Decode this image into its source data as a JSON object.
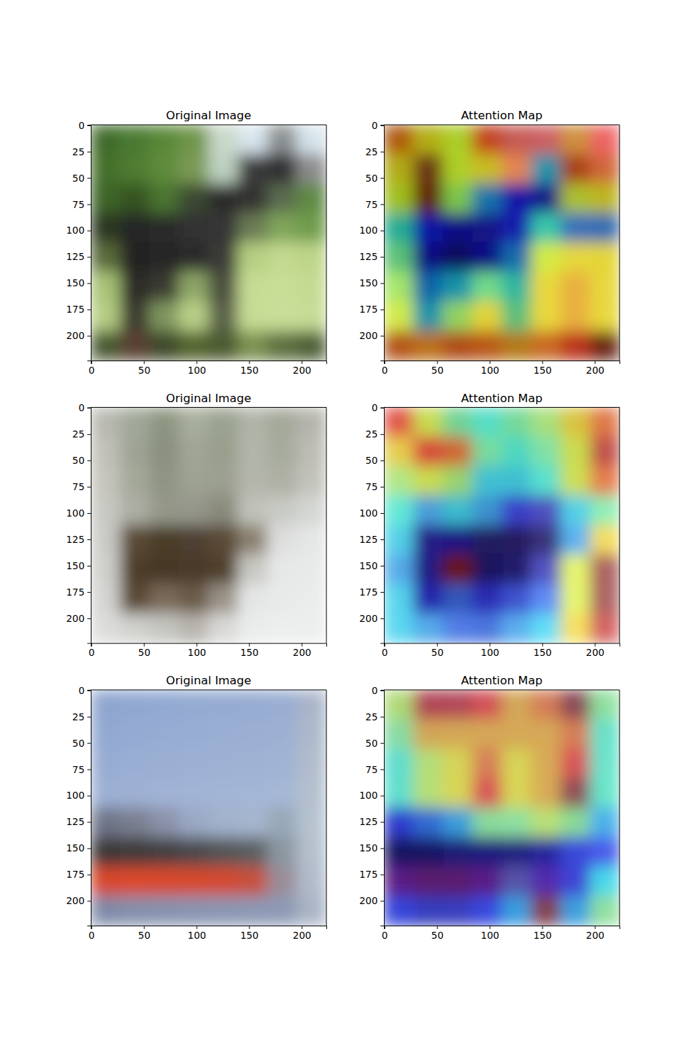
{
  "chart_data": [
    {
      "type": "image",
      "title": "Original Image",
      "xlim": [
        -0.5,
        223.5
      ],
      "ylim": [
        223.5,
        -0.5
      ],
      "xticks": [
        0,
        50,
        100,
        150,
        200
      ],
      "yticks": [
        0,
        25,
        50,
        75,
        100,
        125,
        150,
        175,
        200
      ],
      "cells": [
        [
          "#3f6a2a",
          "#4a7a30",
          "#5a8838",
          "#6f9548",
          "#c8d8c8",
          "#d8e6ee",
          "#8a8f90",
          "#d5e3ec"
        ],
        [
          "#456f2c",
          "#4f7c33",
          "#5f8b3b",
          "#7a9a55",
          "#bfd2c2",
          "#3a3a3a",
          "#2e2e30",
          "#8c8c8c"
        ],
        [
          "#3d6528",
          "#355224",
          "#4b7533",
          "#3a4a30",
          "#2c2c2c",
          "#303030",
          "#5a6a50",
          "#5f8a45"
        ],
        [
          "#2a3520",
          "#252525",
          "#2a2a2a",
          "#303030",
          "#353535",
          "#6a7a55",
          "#7fa55a",
          "#6f9c4c"
        ],
        [
          "#5a6a3a",
          "#222222",
          "#262626",
          "#2a2a2a",
          "#3a3a38",
          "#b5cf82",
          "#c2d98f",
          "#bdd588"
        ],
        [
          "#a8c277",
          "#2a2a28",
          "#3a3a30",
          "#8ea668",
          "#4a4f3e",
          "#c6dc94",
          "#c8dd96",
          "#c4da92"
        ],
        [
          "#b5cd84",
          "#3a3a2f",
          "#7f9660",
          "#b9d088",
          "#5a6248",
          "#c6dc94",
          "#c9de98",
          "#c6db95"
        ],
        [
          "#4a5a30",
          "#5a4030",
          "#3e4a2c",
          "#55652f",
          "#4b5a30",
          "#7d9150",
          "#5f7040",
          "#4e5e35"
        ]
      ]
    },
    {
      "type": "heatmap",
      "title": "Attention Map",
      "color": "jet",
      "xlim": [
        -0.5,
        223.5
      ],
      "ylim": [
        223.5,
        -0.5
      ],
      "xticks": [
        0,
        50,
        100,
        150,
        200
      ],
      "yticks": [
        0,
        25,
        50,
        75,
        100,
        125,
        150,
        175,
        200
      ],
      "cells": [
        [
          0.7,
          0.6,
          0.55,
          0.75,
          0.8,
          0.8,
          0.65,
          0.75
        ],
        [
          0.6,
          0.85,
          0.55,
          0.6,
          0.7,
          0.35,
          0.7,
          0.7
        ],
        [
          0.55,
          0.85,
          0.5,
          0.3,
          0.2,
          0.15,
          0.55,
          0.6
        ],
        [
          0.4,
          0.2,
          0.15,
          0.15,
          0.2,
          0.4,
          0.25,
          0.25
        ],
        [
          0.45,
          0.15,
          0.1,
          0.15,
          0.3,
          0.55,
          0.6,
          0.6
        ],
        [
          0.5,
          0.3,
          0.35,
          0.45,
          0.4,
          0.6,
          0.65,
          0.6
        ],
        [
          0.55,
          0.35,
          0.5,
          0.6,
          0.45,
          0.6,
          0.65,
          0.6
        ],
        [
          0.7,
          0.65,
          0.7,
          0.7,
          0.65,
          0.7,
          0.75,
          0.85
        ]
      ]
    },
    {
      "type": "image",
      "title": "Original Image",
      "xlim": [
        -0.5,
        223.5
      ],
      "ylim": [
        223.5,
        -0.5
      ],
      "xticks": [
        0,
        50,
        100,
        150,
        200
      ],
      "yticks": [
        0,
        25,
        50,
        75,
        100,
        125,
        150,
        175,
        200
      ],
      "cells": [
        [
          "#b8b8b0",
          "#a0a898",
          "#8c9480",
          "#a8ae9c",
          "#9aa28e",
          "#b0b4a8",
          "#a4a898",
          "#b4b4ac"
        ],
        [
          "#c0c0b8",
          "#9ea494",
          "#8a9080",
          "#a0a694",
          "#989e8c",
          "#b2b6aa",
          "#a6aa9c",
          "#bcbcb4"
        ],
        [
          "#c4c4bc",
          "#a4a898",
          "#8e9484",
          "#9ea292",
          "#9ca090",
          "#b4b6ac",
          "#aeb0a4",
          "#c2c2bc"
        ],
        [
          "#c8c8c2",
          "#acaea4",
          "#959889",
          "#94978a",
          "#8a8a7c",
          "#c0c2ba",
          "#c8cac4",
          "#d4d6d2"
        ],
        [
          "#cacac6",
          "#5a4a34",
          "#4a3c28",
          "#4e4030",
          "#5a4a34",
          "#8a8070",
          "#dedfde",
          "#e4e6e6"
        ],
        [
          "#cfcfcb",
          "#4e3e2a",
          "#463826",
          "#4a3b29",
          "#503f2c",
          "#c8c8c2",
          "#e6e8e8",
          "#e8eaea"
        ],
        [
          "#d4d4d2",
          "#5a4632",
          "#7a6a58",
          "#6a5a46",
          "#9a9286",
          "#e4e6e6",
          "#e8eaea",
          "#eaecec"
        ],
        [
          "#dcdcda",
          "#d0d0cc",
          "#c4c4c0",
          "#b8b4ae",
          "#d8d8d6",
          "#eaecec",
          "#eceeee",
          "#eceeee"
        ]
      ]
    },
    {
      "type": "heatmap",
      "title": "Attention Map",
      "color": "jet",
      "xlim": [
        -0.5,
        223.5
      ],
      "ylim": [
        223.5,
        -0.5
      ],
      "xticks": [
        0,
        50,
        100,
        150,
        200
      ],
      "yticks": [
        0,
        25,
        50,
        75,
        100,
        125,
        150,
        175,
        200
      ],
      "cells": [
        [
          0.75,
          0.55,
          0.45,
          0.4,
          0.45,
          0.5,
          0.6,
          0.7
        ],
        [
          0.6,
          0.75,
          0.7,
          0.45,
          0.4,
          0.45,
          0.55,
          0.8
        ],
        [
          0.5,
          0.55,
          0.5,
          0.35,
          0.35,
          0.4,
          0.55,
          0.7
        ],
        [
          0.4,
          0.3,
          0.35,
          0.3,
          0.2,
          0.15,
          0.35,
          0.45
        ],
        [
          0.35,
          0.15,
          0.15,
          0.1,
          0.1,
          0.1,
          0.3,
          0.6
        ],
        [
          0.3,
          0.15,
          0.85,
          0.1,
          0.12,
          0.15,
          0.55,
          0.85
        ],
        [
          0.35,
          0.2,
          0.25,
          0.2,
          0.22,
          0.25,
          0.55,
          0.85
        ],
        [
          0.35,
          0.3,
          0.25,
          0.25,
          0.3,
          0.35,
          0.6,
          0.8
        ]
      ]
    },
    {
      "type": "image",
      "title": "Original Image",
      "xlim": [
        -0.5,
        223.5
      ],
      "ylim": [
        223.5,
        -0.5
      ],
      "xticks": [
        0,
        50,
        100,
        150,
        200
      ],
      "yticks": [
        0,
        25,
        50,
        75,
        100,
        125,
        150,
        175,
        200
      ],
      "cells": [
        [
          "#8ea5cf",
          "#90a7d0",
          "#92a9d1",
          "#94aad1",
          "#95abd1",
          "#96acd2",
          "#98add2",
          "#a8b4c8"
        ],
        [
          "#92a8d1",
          "#94aad2",
          "#96acd2",
          "#98add3",
          "#9aaed3",
          "#9bafd3",
          "#9cb0d3",
          "#acb8ca"
        ],
        [
          "#97acd3",
          "#99aed3",
          "#9bafd3",
          "#9cb0d4",
          "#9eb1d4",
          "#9fb2d4",
          "#a0b3d4",
          "#b0bccc"
        ],
        [
          "#9cb0d4",
          "#9eb1d4",
          "#a0b3d5",
          "#a1b4d5",
          "#a2b5d5",
          "#a3b6d5",
          "#a4b7d5",
          "#b4c0ce"
        ],
        [
          "#6e7488",
          "#7a7f90",
          "#8a92a8",
          "#9aa8c4",
          "#a2b2cc",
          "#a6b6cf",
          "#98a8b8",
          "#b6c2cf"
        ],
        [
          "#3a3838",
          "#3c3a3a",
          "#424040",
          "#4a4a4c",
          "#525454",
          "#5a5e60",
          "#8a96a0",
          "#b4c0cc"
        ],
        [
          "#d8462a",
          "#da4a2c",
          "#d84a2c",
          "#d64a2c",
          "#d44a2e",
          "#c8503a",
          "#9a8c98",
          "#b0bccb"
        ],
        [
          "#7e8aa8",
          "#8290ac",
          "#8592ae",
          "#8794b0",
          "#8996b2",
          "#8b98b4",
          "#8d9ab5",
          "#a8b4c4"
        ]
      ]
    },
    {
      "type": "heatmap",
      "title": "Attention Map",
      "color": "jet",
      "xlim": [
        -0.5,
        223.5
      ],
      "ylim": [
        223.5,
        -0.5
      ],
      "xticks": [
        0,
        50,
        100,
        150,
        200
      ],
      "yticks": [
        0,
        25,
        50,
        75,
        100,
        125,
        150,
        175,
        200
      ],
      "cells": [
        [
          0.5,
          0.75,
          0.75,
          0.7,
          0.6,
          0.65,
          0.8,
          0.45
        ],
        [
          0.45,
          0.6,
          0.6,
          0.6,
          0.6,
          0.6,
          0.65,
          0.4
        ],
        [
          0.4,
          0.5,
          0.55,
          0.65,
          0.55,
          0.6,
          0.7,
          0.4
        ],
        [
          0.4,
          0.5,
          0.55,
          0.7,
          0.55,
          0.6,
          0.8,
          0.4
        ],
        [
          0.2,
          0.25,
          0.3,
          0.45,
          0.45,
          0.5,
          0.45,
          0.3
        ],
        [
          0.1,
          0.1,
          0.12,
          0.12,
          0.12,
          0.15,
          0.2,
          0.2
        ],
        [
          0.15,
          0.12,
          0.12,
          0.15,
          0.25,
          0.2,
          0.2,
          0.35
        ],
        [
          0.2,
          0.15,
          0.15,
          0.2,
          0.3,
          0.8,
          0.3,
          0.45
        ]
      ]
    }
  ]
}
